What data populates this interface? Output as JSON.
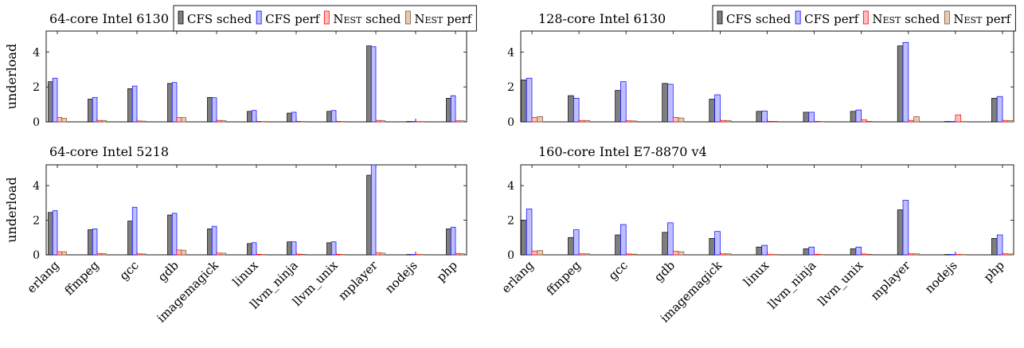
{
  "colors": {
    "cfs_sched": "#7f7f7f",
    "cfs_perf": "#bfbfff",
    "nest_sched": "#ffbfbf",
    "nest_perf": "#e6cbb3",
    "cfs_sched_edge": "#000000",
    "cfs_perf_edge": "#0000ff",
    "nest_sched_edge": "#ff0000",
    "nest_perf_edge": "#7f4d2a"
  },
  "legend": {
    "cfs_sched": "CFS sched",
    "cfs_perf": "CFS perf",
    "nest_sched_prefix": "Nest",
    "nest_sched_suffix": " sched",
    "nest_perf_prefix": "Nest",
    "nest_perf_suffix": " perf"
  },
  "chart_data": [
    {
      "type": "bar",
      "title": "64-core Intel 6130",
      "ylabel": "underload",
      "ylim": [
        0,
        5.2
      ],
      "yticks": [
        0,
        2,
        4
      ],
      "categories": [
        "erlang",
        "ffmpeg",
        "gcc",
        "gdb",
        "imagemagick",
        "linux",
        "llvm_ninja",
        "llvm_unix",
        "mplayer",
        "nodejs",
        "php"
      ],
      "series": [
        {
          "name": "CFS sched",
          "values": [
            2.3,
            1.3,
            1.9,
            2.2,
            1.4,
            0.6,
            0.5,
            0.6,
            4.35,
            0.02,
            1.35
          ]
        },
        {
          "name": "CFS perf",
          "values": [
            2.5,
            1.4,
            2.05,
            2.25,
            1.38,
            0.65,
            0.55,
            0.65,
            4.3,
            0.02,
            1.5
          ]
        },
        {
          "name": "Nest sched",
          "values": [
            0.25,
            0.08,
            0.05,
            0.25,
            0.08,
            0.03,
            0.03,
            0.03,
            0.08,
            0.02,
            0.06
          ]
        },
        {
          "name": "Nest perf",
          "values": [
            0.2,
            0.08,
            0.04,
            0.25,
            0.08,
            0.02,
            0.02,
            0.02,
            0.08,
            0.02,
            0.06
          ]
        }
      ],
      "legend_position": "top-right"
    },
    {
      "type": "bar",
      "title": "128-core Intel 6130",
      "ylabel": "",
      "ylim": [
        0,
        5.2
      ],
      "yticks": [
        0,
        2,
        4
      ],
      "categories": [
        "erlang",
        "ffmpeg",
        "gcc",
        "gdb",
        "imagemagick",
        "linux",
        "llvm_ninja",
        "llvm_unix",
        "mplayer",
        "nodejs",
        "php"
      ],
      "series": [
        {
          "name": "CFS sched",
          "values": [
            2.4,
            1.5,
            1.8,
            2.2,
            1.3,
            0.6,
            0.55,
            0.6,
            4.35,
            0.02,
            1.35
          ]
        },
        {
          "name": "CFS perf",
          "values": [
            2.5,
            1.35,
            2.3,
            2.15,
            1.55,
            0.62,
            0.55,
            0.68,
            4.55,
            0.02,
            1.45
          ]
        },
        {
          "name": "Nest sched",
          "values": [
            0.25,
            0.08,
            0.06,
            0.25,
            0.08,
            0.03,
            0.03,
            0.12,
            0.08,
            0.4,
            0.08
          ]
        },
        {
          "name": "Nest perf",
          "values": [
            0.3,
            0.08,
            0.05,
            0.22,
            0.08,
            0.03,
            0.02,
            0.03,
            0.3,
            0.02,
            0.07
          ]
        }
      ],
      "legend_position": "top-right"
    },
    {
      "type": "bar",
      "title": "64-core Intel 5218",
      "ylabel": "underload",
      "ylim": [
        0,
        5.2
      ],
      "yticks": [
        0,
        2,
        4
      ],
      "categories": [
        "erlang",
        "ffmpeg",
        "gcc",
        "gdb",
        "imagemagick",
        "linux",
        "llvm_ninja",
        "llvm_unix",
        "mplayer",
        "nodejs",
        "php"
      ],
      "series": [
        {
          "name": "CFS sched",
          "values": [
            2.45,
            1.45,
            1.95,
            2.3,
            1.5,
            0.65,
            0.75,
            0.7,
            4.6,
            0.02,
            1.5
          ]
        },
        {
          "name": "CFS perf",
          "values": [
            2.55,
            1.5,
            2.75,
            2.4,
            1.65,
            0.7,
            0.75,
            0.75,
            5.2,
            0.02,
            1.6
          ]
        },
        {
          "name": "Nest sched",
          "values": [
            0.18,
            0.08,
            0.06,
            0.28,
            0.1,
            0.03,
            0.04,
            0.03,
            0.12,
            0.02,
            0.08
          ]
        },
        {
          "name": "Nest perf",
          "values": [
            0.18,
            0.07,
            0.05,
            0.27,
            0.1,
            0.02,
            0.03,
            0.02,
            0.1,
            0.02,
            0.07
          ]
        }
      ]
    },
    {
      "type": "bar",
      "title": "160-core Intel E7-8870 v4",
      "ylabel": "",
      "ylim": [
        0,
        5.2
      ],
      "yticks": [
        0,
        2,
        4
      ],
      "categories": [
        "erlang",
        "ffmpeg",
        "gcc",
        "gdb",
        "imagemagick",
        "linux",
        "llvm_ninja",
        "llvm_unix",
        "mplayer",
        "nodejs",
        "php"
      ],
      "series": [
        {
          "name": "CFS sched",
          "values": [
            2.0,
            1.0,
            1.15,
            1.3,
            0.95,
            0.45,
            0.35,
            0.35,
            2.6,
            0.02,
            0.95
          ]
        },
        {
          "name": "CFS perf",
          "values": [
            2.65,
            1.45,
            1.75,
            1.85,
            1.35,
            0.55,
            0.45,
            0.45,
            3.15,
            0.02,
            1.15
          ]
        },
        {
          "name": "Nest sched",
          "values": [
            0.22,
            0.06,
            0.05,
            0.2,
            0.06,
            0.02,
            0.03,
            0.05,
            0.06,
            0.02,
            0.06
          ]
        },
        {
          "name": "Nest perf",
          "values": [
            0.25,
            0.06,
            0.04,
            0.18,
            0.06,
            0.02,
            0.02,
            0.03,
            0.06,
            0.02,
            0.05
          ]
        }
      ]
    }
  ]
}
